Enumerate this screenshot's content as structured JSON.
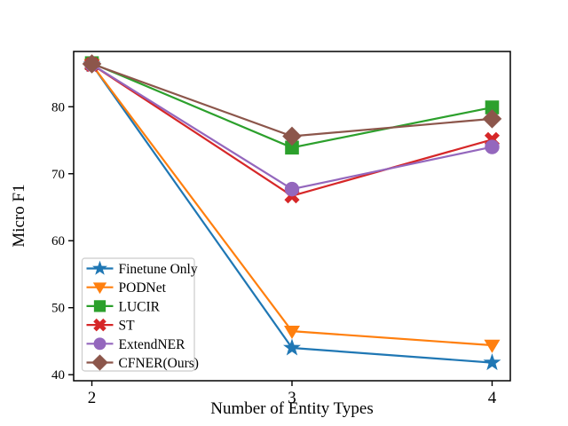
{
  "figure": {
    "background": "#ffffff",
    "axis_color": "#000000",
    "legend_border_color": "#cccccc"
  },
  "chart_data": {
    "type": "line",
    "title": "",
    "xlabel": "Number of Entity Types",
    "ylabel": "Micro F1",
    "x": [
      2,
      3,
      4
    ],
    "xticks": [
      2,
      3,
      4
    ],
    "yticks": [
      40,
      50,
      60,
      70,
      80
    ],
    "xlim": [
      1.909,
      4.091
    ],
    "ylim": [
      39.1,
      88.25
    ],
    "grid": false,
    "legend_position": "lower-left",
    "series": [
      {
        "name": "Finetune Only",
        "marker": "star",
        "color": "#1f77b4",
        "values": [
          86.3,
          44.0,
          41.8
        ]
      },
      {
        "name": "PODNet",
        "marker": "triangle-down",
        "color": "#ff7f0e",
        "values": [
          86.3,
          46.5,
          44.4
        ]
      },
      {
        "name": "LUCIR",
        "marker": "square",
        "color": "#2ca02c",
        "values": [
          86.5,
          73.9,
          79.9
        ]
      },
      {
        "name": "ST",
        "marker": "x",
        "color": "#d62728",
        "values": [
          86.3,
          66.7,
          75.1
        ]
      },
      {
        "name": "ExtendNER",
        "marker": "circle",
        "color": "#9467bd",
        "values": [
          86.3,
          67.7,
          74.0
        ]
      },
      {
        "name": "CFNER(Ours)",
        "marker": "diamond",
        "color": "#8c564b",
        "values": [
          86.4,
          75.6,
          78.2
        ]
      }
    ]
  }
}
